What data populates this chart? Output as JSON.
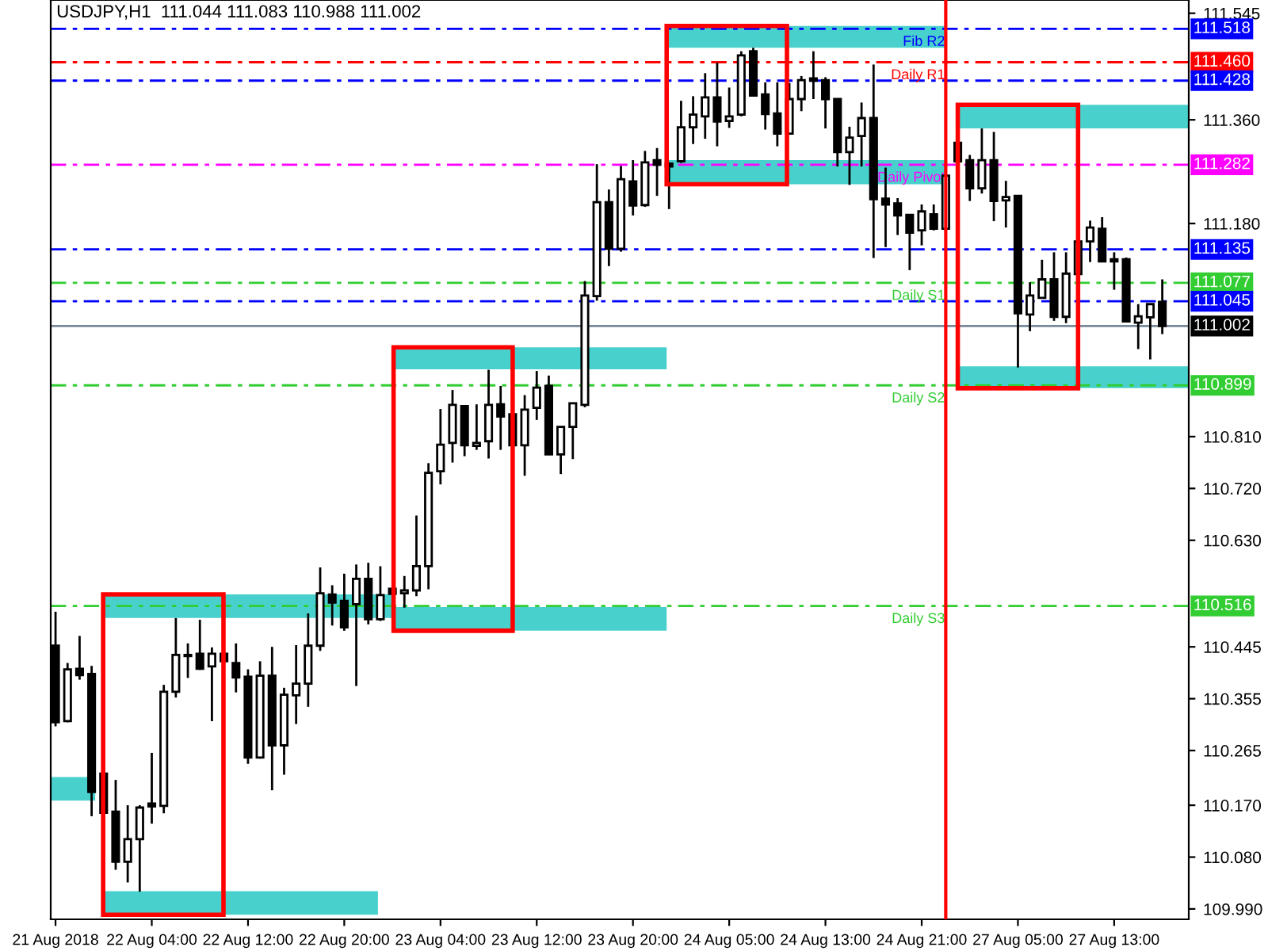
{
  "chart_data": {
    "type": "candlestick",
    "title": "USDJPY,H1  111.044 111.083 110.988 111.002",
    "categories": [
      "21 Aug 2018",
      null,
      null,
      null,
      null,
      null,
      null,
      null,
      "22 Aug 04:00",
      null,
      null,
      null,
      null,
      null,
      null,
      null,
      "22 Aug 12:00",
      null,
      null,
      null,
      null,
      null,
      null,
      null,
      "22 Aug 20:00",
      null,
      null,
      null,
      null,
      null,
      null,
      null,
      "23 Aug 04:00",
      null,
      null,
      null,
      null,
      null,
      null,
      null,
      "23 Aug 12:00",
      null,
      null,
      null,
      null,
      null,
      null,
      null,
      "23 Aug 20:00",
      null,
      null,
      null,
      null,
      null,
      null,
      null,
      "24 Aug 05:00",
      null,
      null,
      null,
      null,
      null,
      null,
      null,
      "24 Aug 13:00",
      null,
      null,
      null,
      null,
      null,
      null,
      null,
      "24 Aug 21:00",
      null,
      null,
      null,
      null,
      null,
      null,
      null,
      "27 Aug 05:00",
      null,
      null,
      null,
      null,
      null,
      null,
      null,
      "27 Aug 13:00",
      null,
      null,
      null,
      null
    ],
    "ohlc": [
      [
        110.447,
        110.506,
        110.307,
        110.314
      ],
      [
        110.316,
        110.417,
        110.314,
        110.406
      ],
      [
        110.407,
        110.464,
        110.388,
        110.396
      ],
      [
        110.398,
        110.412,
        110.151,
        110.193
      ],
      [
        110.225,
        110.225,
        110.157,
        110.157
      ],
      [
        110.159,
        110.214,
        110.058,
        110.072
      ],
      [
        110.072,
        110.17,
        110.036,
        110.111
      ],
      [
        110.111,
        110.17,
        110.02,
        110.166
      ],
      [
        110.173,
        110.261,
        110.138,
        110.168
      ],
      [
        110.169,
        110.379,
        110.156,
        110.367
      ],
      [
        110.367,
        110.495,
        110.357,
        110.431
      ],
      [
        110.429,
        110.451,
        110.391,
        110.431
      ],
      [
        110.433,
        110.492,
        110.405,
        110.407
      ],
      [
        110.411,
        110.444,
        110.316,
        110.433
      ],
      [
        110.433,
        110.433,
        110.42,
        110.42
      ],
      [
        110.417,
        110.451,
        110.366,
        110.392
      ],
      [
        110.393,
        110.406,
        110.242,
        110.253
      ],
      [
        110.253,
        110.42,
        110.251,
        110.395
      ],
      [
        110.395,
        110.445,
        110.196,
        110.274
      ],
      [
        110.274,
        110.374,
        110.223,
        110.362
      ],
      [
        110.361,
        110.448,
        110.311,
        110.381
      ],
      [
        110.381,
        110.503,
        110.341,
        110.447
      ],
      [
        110.447,
        110.583,
        110.438,
        110.538
      ],
      [
        110.536,
        110.552,
        110.482,
        110.522
      ],
      [
        110.525,
        110.572,
        110.473,
        110.479
      ],
      [
        110.519,
        110.588,
        110.377,
        110.563
      ],
      [
        110.563,
        110.591,
        110.484,
        110.493
      ],
      [
        110.493,
        110.585,
        110.49,
        110.535
      ],
      [
        110.546,
        110.546,
        110.537,
        110.537
      ],
      [
        110.538,
        110.568,
        110.513,
        110.543
      ],
      [
        110.543,
        110.673,
        110.533,
        110.585
      ],
      [
        110.585,
        110.764,
        110.545,
        110.747
      ],
      [
        110.75,
        110.858,
        110.727,
        110.796
      ],
      [
        110.799,
        110.891,
        110.765,
        110.865
      ],
      [
        110.863,
        110.863,
        110.776,
        110.795
      ],
      [
        110.794,
        110.866,
        110.787,
        110.799
      ],
      [
        110.802,
        110.926,
        110.772,
        110.865
      ],
      [
        110.866,
        110.898,
        110.787,
        110.845
      ],
      [
        110.849,
        110.849,
        110.795,
        110.795
      ],
      [
        110.795,
        110.882,
        110.742,
        110.857
      ],
      [
        110.86,
        110.924,
        110.839,
        110.895
      ],
      [
        110.898,
        110.916,
        110.779,
        110.779
      ],
      [
        110.779,
        110.827,
        110.745,
        110.827
      ],
      [
        110.827,
        110.868,
        110.771,
        110.868
      ],
      [
        110.865,
        111.08,
        110.861,
        111.055
      ],
      [
        111.054,
        111.283,
        111.046,
        111.217
      ],
      [
        111.217,
        111.239,
        111.106,
        111.136
      ],
      [
        111.136,
        111.28,
        111.131,
        111.257
      ],
      [
        111.253,
        111.29,
        111.194,
        111.211
      ],
      [
        111.212,
        111.306,
        111.209,
        111.286
      ],
      [
        111.29,
        111.311,
        111.228,
        111.282
      ],
      [
        111.284,
        111.284,
        111.205,
        111.279
      ],
      [
        111.288,
        111.393,
        111.285,
        111.347
      ],
      [
        111.347,
        111.401,
        111.318,
        111.369
      ],
      [
        111.366,
        111.441,
        111.327,
        111.399
      ],
      [
        111.399,
        111.459,
        111.314,
        111.357
      ],
      [
        111.358,
        111.416,
        111.346,
        111.366
      ],
      [
        111.369,
        111.479,
        111.366,
        111.472
      ],
      [
        111.479,
        111.485,
        111.402,
        111.402
      ],
      [
        111.404,
        111.425,
        111.343,
        111.37
      ],
      [
        111.371,
        111.425,
        111.314,
        111.336
      ],
      [
        111.336,
        111.424,
        111.336,
        111.396
      ],
      [
        111.396,
        111.436,
        111.375,
        111.429
      ],
      [
        111.432,
        111.479,
        111.396,
        111.428
      ],
      [
        111.429,
        111.434,
        111.345,
        111.396
      ],
      [
        111.396,
        111.396,
        111.279,
        111.304
      ],
      [
        111.304,
        111.348,
        111.247,
        111.329
      ],
      [
        111.332,
        111.39,
        111.279,
        111.363
      ],
      [
        111.363,
        111.456,
        111.12,
        111.222
      ],
      [
        111.223,
        111.277,
        111.139,
        111.213
      ],
      [
        111.215,
        111.224,
        111.16,
        111.194
      ],
      [
        111.195,
        111.195,
        111.099,
        111.164
      ],
      [
        111.168,
        111.213,
        111.142,
        111.201
      ],
      [
        111.196,
        111.213,
        111.168,
        111.171
      ],
      [
        111.171,
        111.263,
        111.171,
        111.263
      ],
      [
        111.32,
        111.32,
        111.288,
        111.288
      ],
      [
        111.29,
        111.299,
        111.219,
        111.241
      ],
      [
        111.241,
        111.345,
        111.232,
        111.29
      ],
      [
        111.29,
        111.339,
        111.184,
        111.219
      ],
      [
        111.22,
        111.254,
        111.173,
        111.226
      ],
      [
        111.228,
        111.228,
        110.93,
        111.024
      ],
      [
        111.022,
        111.078,
        110.993,
        111.055
      ],
      [
        111.051,
        111.117,
        111.051,
        111.083
      ],
      [
        111.083,
        111.13,
        111.011,
        111.018
      ],
      [
        111.018,
        111.13,
        111.007,
        111.093
      ],
      [
        111.092,
        111.149,
        111.092,
        111.149
      ],
      [
        111.149,
        111.185,
        111.113,
        111.173
      ],
      [
        111.171,
        111.191,
        111.114,
        111.114
      ],
      [
        111.118,
        111.13,
        111.065,
        111.114
      ],
      [
        111.118,
        111.121,
        111.01,
        111.01
      ],
      [
        111.008,
        111.04,
        110.962,
        111.019
      ],
      [
        111.017,
        111.04,
        110.944,
        111.04
      ],
      [
        111.044,
        111.083,
        110.988,
        111.002
      ]
    ],
    "ylim": [
      109.972,
      111.568
    ],
    "yticks": [
      {
        "value": 111.545,
        "label": "111.545"
      },
      {
        "value": 111.36,
        "label": "111.360"
      },
      {
        "value": 111.18,
        "label": "111.180"
      },
      {
        "value": 110.81,
        "label": "110.810"
      },
      {
        "value": 110.72,
        "label": "110.720"
      },
      {
        "value": 110.63,
        "label": "110.630"
      },
      {
        "value": 110.445,
        "label": "110.445"
      },
      {
        "value": 110.355,
        "label": "110.355"
      },
      {
        "value": 110.265,
        "label": "110.265"
      },
      {
        "value": 110.17,
        "label": "110.170"
      },
      {
        "value": 110.08,
        "label": "110.080"
      },
      {
        "value": 109.99,
        "label": "109.990"
      }
    ],
    "ref_lines": [
      {
        "axis": "y",
        "value": 111.518,
        "label": "111.518",
        "color": "#0000ff",
        "line_style": "dashed"
      },
      {
        "axis": "y",
        "value": 111.46,
        "label": "111.460",
        "color": "#ff0000",
        "line_style": "dashed"
      },
      {
        "axis": "y",
        "value": 111.428,
        "label": "111.428",
        "color": "#0000ff",
        "line_style": "dashed"
      },
      {
        "axis": "y",
        "value": 111.282,
        "label": "111.282",
        "color": "#ff00ff",
        "line_style": "dashed"
      },
      {
        "axis": "y",
        "value": 111.135,
        "label": "111.135",
        "color": "#0000ff",
        "line_style": "dashed"
      },
      {
        "axis": "y",
        "value": 111.077,
        "label": "111.077",
        "color": "#32cd32",
        "line_style": "dashed"
      },
      {
        "axis": "y",
        "value": 111.045,
        "label": "111.045",
        "color": "#0000ff",
        "line_style": "dashed"
      },
      {
        "axis": "y",
        "value": 111.002,
        "label": "111.002",
        "color": "#778899",
        "line_style": "solid"
      },
      {
        "axis": "y",
        "value": 110.899,
        "label": "110.899",
        "color": "#32cd32",
        "line_style": "dashed"
      },
      {
        "axis": "y",
        "value": 110.516,
        "label": "110.516",
        "color": "#32cd32",
        "line_style": "dashed"
      }
    ],
    "annotations": [
      {
        "text": "Fib R2",
        "y": 111.518
      },
      {
        "text": "Daily R1",
        "y": 111.46
      },
      {
        "text": "Daily Pivot",
        "y": 111.282
      },
      {
        "text": "Daily S1",
        "y": 111.077
      },
      {
        "text": "Daily S2",
        "y": 110.899
      },
      {
        "text": "Daily S3",
        "y": 110.516
      }
    ],
    "grid": false,
    "legend": false
  }
}
